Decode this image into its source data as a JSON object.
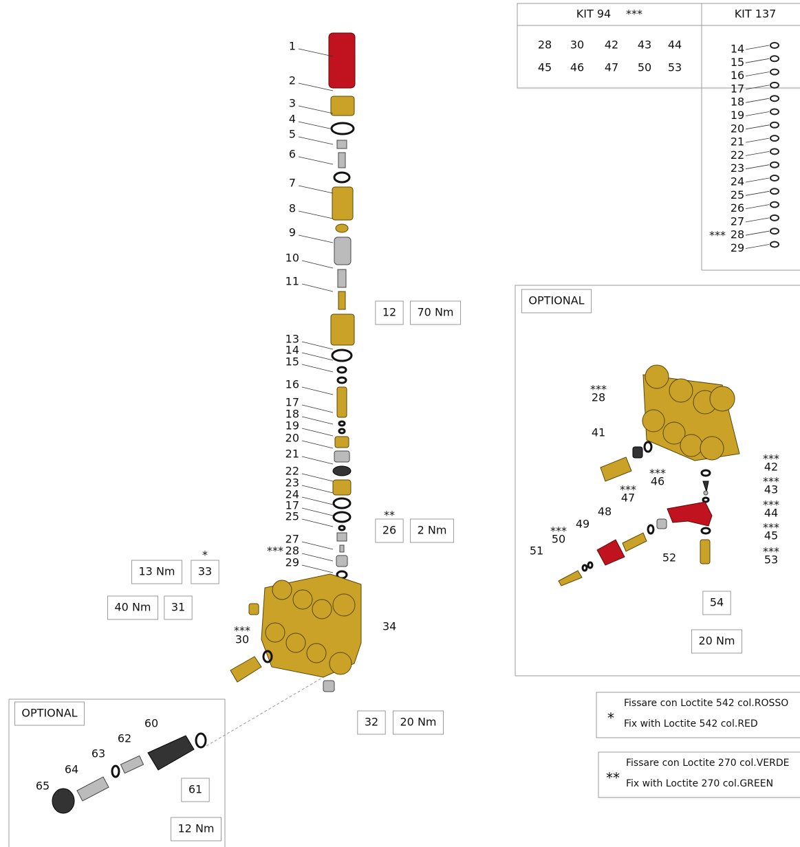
{
  "kit_94": {
    "title": "KIT 94",
    "mark": "***",
    "rows": [
      [
        "28",
        "30",
        "42",
        "43",
        "44"
      ],
      [
        "45",
        "46",
        "47",
        "50",
        "53"
      ]
    ]
  },
  "kit_137": {
    "title": "KIT 137",
    "mark": "***",
    "items": [
      "14",
      "15",
      "16",
      "17",
      "18",
      "19",
      "20",
      "21",
      "22",
      "23",
      "24",
      "25",
      "26",
      "27",
      "28",
      "29"
    ]
  },
  "main_view": {
    "labels": [
      "1",
      "2",
      "3",
      "4",
      "5",
      "6",
      "7",
      "8",
      "9",
      "10",
      "11",
      "12",
      "70 Nm",
      "13",
      "14",
      "15",
      "16",
      "17",
      "18",
      "19",
      "20",
      "21",
      "22",
      "23",
      "24",
      "17",
      "25",
      "**",
      "26",
      "2 Nm",
      "27",
      "***",
      "28",
      "29",
      "*",
      "33",
      "13 Nm",
      "40 Nm",
      "31",
      "***",
      "30",
      "34",
      "32",
      "20 Nm"
    ]
  },
  "optional_outlet": {
    "labels": [
      "OPTIONAL",
      "60",
      "62",
      "63",
      "64",
      "65",
      "61",
      "12 Nm"
    ]
  },
  "optional_manifold": {
    "labels": [
      "OPTIONAL",
      "***",
      "28",
      "41",
      "***",
      "46",
      "***",
      "47",
      "48",
      "49",
      "***",
      "50",
      "51",
      "52",
      "54",
      "20 Nm",
      "***",
      "42",
      "***",
      "43",
      "***",
      "44",
      "***",
      "45",
      "***",
      "53"
    ]
  },
  "notes": [
    {
      "mark": "*",
      "it": "Fissare con Loctite 542 col.ROSSO",
      "en": "Fix with Loctite 542 col.RED"
    },
    {
      "mark": "**",
      "it": "Fissare con Loctite 270 col.VERDE",
      "en": "Fix with Loctite 270 col.GREEN"
    }
  ]
}
